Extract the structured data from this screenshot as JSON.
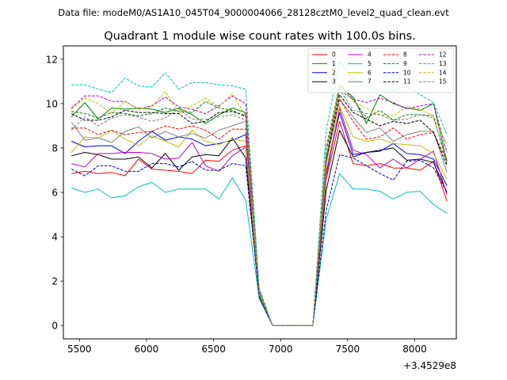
{
  "chart_data": {
    "type": "line",
    "suptitle": "Data file: modeM0/AS1A10_045T04_9000004066_28128cztM0_level2_quad_clean.evt",
    "title": "Quadrant 1 module wise count rates with 100.0s bins.",
    "xlabel": "",
    "ylabel": "",
    "x_offset_label": "+3.4529e8",
    "xlim": [
      5380,
      8310
    ],
    "ylim": [
      -0.6,
      12.6
    ],
    "x_ticks": [
      5500,
      6000,
      6500,
      7000,
      7500,
      8000
    ],
    "y_ticks": [
      0,
      2,
      4,
      6,
      8,
      10,
      12
    ],
    "legend_location": "top-right",
    "grid": false,
    "x": [
      5440,
      5540,
      5640,
      5740,
      5840,
      5940,
      6040,
      6140,
      6240,
      6340,
      6440,
      6540,
      6640,
      6740,
      6840,
      6940,
      7040,
      7140,
      7240,
      7340,
      7440,
      7540,
      7640,
      7740,
      7840,
      7940,
      8040,
      8140,
      8240
    ],
    "series": [
      {
        "name": "0",
        "color": "#ff0000",
        "dash": "solid",
        "values": [
          6.85,
          6.95,
          6.85,
          6.9,
          6.75,
          7.5,
          7.05,
          7.0,
          6.95,
          6.85,
          7.45,
          7.4,
          7.9,
          8.1,
          1.3,
          0.0,
          0.0,
          0.0,
          0.0,
          6.6,
          9.2,
          7.3,
          7.2,
          7.3,
          7.1,
          7.1,
          7.0,
          7.4,
          5.6
        ]
      },
      {
        "name": "1",
        "color": "#008000",
        "dash": "solid",
        "values": [
          9.4,
          10.05,
          9.3,
          9.8,
          9.75,
          9.8,
          9.75,
          9.6,
          9.8,
          9.5,
          9.1,
          9.5,
          9.8,
          9.6,
          1.6,
          0.0,
          0.0,
          0.0,
          0.0,
          7.5,
          10.8,
          10.3,
          9.1,
          10.4,
          10.0,
          9.8,
          9.7,
          10.0,
          7.4
        ]
      },
      {
        "name": "2",
        "color": "#0000ff",
        "dash": "solid",
        "values": [
          8.3,
          8.05,
          8.1,
          8.1,
          7.75,
          8.3,
          8.75,
          8.35,
          8.5,
          8.4,
          8.1,
          8.2,
          8.35,
          8.6,
          1.5,
          0.0,
          0.0,
          0.0,
          0.0,
          6.9,
          9.6,
          7.7,
          7.8,
          7.85,
          8.2,
          7.75,
          7.7,
          7.5,
          6.3
        ]
      },
      {
        "name": "3",
        "color": "#000000",
        "dash": "solid",
        "values": [
          7.65,
          7.8,
          7.7,
          7.5,
          7.5,
          7.6,
          7.1,
          7.75,
          7.0,
          7.6,
          7.7,
          7.65,
          8.45,
          7.55,
          1.3,
          0.0,
          0.0,
          0.0,
          0.0,
          6.1,
          8.8,
          7.6,
          7.8,
          7.9,
          8.0,
          7.45,
          7.5,
          7.35,
          6.0
        ]
      },
      {
        "name": "4",
        "color": "#bf00bf",
        "dash": "solid",
        "values": [
          7.3,
          7.15,
          7.75,
          7.75,
          7.8,
          7.8,
          7.75,
          7.5,
          7.55,
          8.25,
          7.2,
          6.95,
          7.65,
          8.05,
          1.4,
          0.0,
          0.0,
          0.0,
          0.0,
          6.7,
          9.8,
          7.9,
          7.7,
          7.1,
          7.5,
          7.1,
          7.5,
          7.85,
          5.9
        ]
      },
      {
        "name": "5",
        "color": "#00bfbf",
        "dash": "solid",
        "values": [
          6.2,
          6.0,
          6.15,
          5.75,
          5.85,
          6.25,
          6.45,
          6.0,
          6.15,
          6.15,
          6.15,
          5.7,
          6.65,
          5.65,
          1.2,
          0.0,
          0.0,
          0.0,
          0.0,
          4.8,
          6.85,
          6.15,
          6.15,
          6.05,
          5.7,
          6.0,
          6.05,
          5.45,
          5.05
        ]
      },
      {
        "name": "6",
        "color": "#bfbf00",
        "dash": "solid",
        "values": [
          7.8,
          8.5,
          8.45,
          8.8,
          8.4,
          8.1,
          8.55,
          8.3,
          8.05,
          8.8,
          8.3,
          8.15,
          8.4,
          8.3,
          1.4,
          0.0,
          0.0,
          0.0,
          0.0,
          7.0,
          9.9,
          8.5,
          8.3,
          8.4,
          8.2,
          8.15,
          8.1,
          7.75,
          6.6
        ]
      },
      {
        "name": "7",
        "color": "#808080",
        "dash": "solid",
        "values": [
          9.15,
          8.35,
          8.45,
          8.25,
          8.75,
          8.95,
          8.45,
          8.75,
          8.5,
          8.65,
          8.45,
          8.8,
          9.0,
          9.2,
          1.5,
          0.0,
          0.0,
          0.0,
          0.0,
          7.3,
          10.2,
          9.4,
          8.7,
          8.9,
          8.3,
          8.6,
          8.75,
          8.75,
          6.9
        ]
      },
      {
        "name": "8",
        "color": "#ff0000",
        "dash": "dashed",
        "values": [
          8.9,
          8.9,
          8.6,
          8.8,
          8.6,
          8.7,
          8.75,
          9.0,
          8.85,
          9.0,
          8.8,
          8.4,
          8.85,
          8.85,
          1.5,
          0.0,
          0.0,
          0.0,
          0.0,
          7.5,
          10.2,
          9.2,
          8.4,
          8.5,
          8.9,
          8.4,
          8.6,
          8.7,
          7.4
        ]
      },
      {
        "name": "9",
        "color": "#008000",
        "dash": "dashed",
        "values": [
          9.65,
          9.55,
          9.35,
          9.6,
          9.55,
          9.45,
          9.55,
          9.8,
          9.65,
          9.6,
          10.1,
          9.8,
          9.7,
          9.4,
          1.6,
          0.0,
          0.0,
          0.0,
          0.0,
          7.9,
          10.6,
          10.2,
          9.35,
          9.7,
          9.25,
          9.5,
          9.5,
          9.45,
          7.3
        ]
      },
      {
        "name": "10",
        "color": "#0000bf",
        "dash": "dashed",
        "values": [
          7.05,
          6.75,
          7.2,
          7.2,
          6.95,
          6.95,
          7.3,
          7.3,
          7.15,
          7.4,
          7.0,
          7.0,
          7.3,
          7.2,
          1.3,
          0.0,
          0.0,
          0.0,
          0.0,
          5.2,
          7.7,
          7.55,
          7.2,
          6.85,
          6.55,
          7.4,
          7.45,
          7.1,
          6.0
        ]
      },
      {
        "name": "11",
        "color": "#000000",
        "dash": "dashed",
        "values": [
          9.55,
          9.25,
          9.25,
          9.4,
          9.7,
          9.6,
          9.6,
          9.55,
          9.55,
          9.1,
          9.2,
          9.6,
          9.65,
          9.45,
          1.5,
          0.0,
          0.0,
          0.0,
          0.0,
          7.5,
          10.4,
          9.6,
          9.3,
          9.0,
          9.2,
          9.1,
          9.25,
          8.7,
          7.2
        ]
      },
      {
        "name": "12",
        "color": "#bf00bf",
        "dash": "dashed",
        "values": [
          9.8,
          10.35,
          10.35,
          10.1,
          10.1,
          9.75,
          9.9,
          10.3,
          9.85,
          9.75,
          9.55,
          9.9,
          10.35,
          10.0,
          1.6,
          0.0,
          0.0,
          0.0,
          0.0,
          8.0,
          10.9,
          10.2,
          10.05,
          10.25,
          10.05,
          9.75,
          9.9,
          10.0,
          7.8
        ]
      },
      {
        "name": "13",
        "color": "#00bfbf",
        "dash": "dashed",
        "values": [
          10.85,
          10.85,
          10.65,
          10.5,
          11.15,
          10.8,
          10.75,
          11.4,
          10.65,
          10.95,
          10.95,
          10.85,
          10.8,
          10.65,
          1.7,
          0.0,
          0.0,
          0.0,
          0.0,
          8.8,
          11.95,
          11.05,
          10.85,
          10.55,
          10.6,
          10.8,
          10.4,
          10.05,
          8.6
        ]
      },
      {
        "name": "14",
        "color": "#bfbf00",
        "dash": "dashed",
        "values": [
          9.75,
          10.25,
          10.0,
          9.55,
          10.1,
          9.75,
          9.85,
          10.55,
          9.55,
          9.9,
          10.25,
          9.85,
          10.45,
          9.45,
          1.6,
          0.0,
          0.0,
          0.0,
          0.0,
          8.1,
          10.9,
          10.1,
          9.8,
          9.5,
          9.45,
          9.85,
          9.75,
          9.45,
          8.15
        ]
      },
      {
        "name": "15",
        "color": "#808080",
        "dash": "dashed",
        "values": [
          8.8,
          9.4,
          9.0,
          9.35,
          9.5,
          9.4,
          9.2,
          9.35,
          9.75,
          9.3,
          9.3,
          9.4,
          9.5,
          9.25,
          1.5,
          0.0,
          0.0,
          0.0,
          0.0,
          7.6,
          10.65,
          9.7,
          9.55,
          9.5,
          9.25,
          9.3,
          9.5,
          9.35,
          7.5
        ]
      }
    ]
  }
}
